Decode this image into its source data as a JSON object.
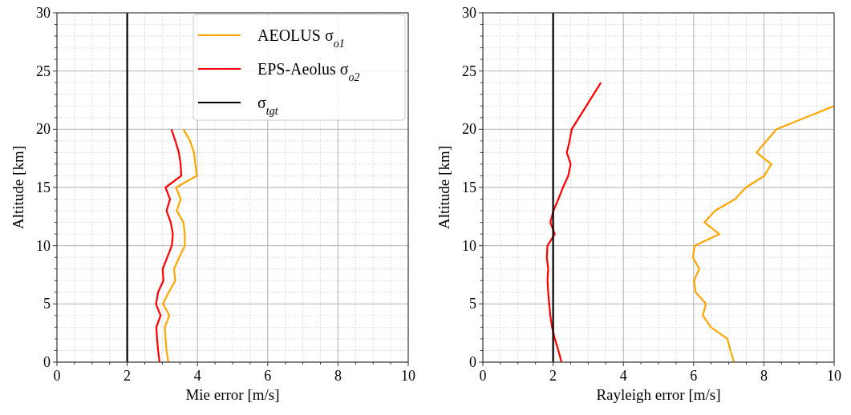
{
  "chart_data": [
    {
      "type": "line",
      "xlabel": "Mie error [m/s]",
      "ylabel": "Altitude [km]",
      "xlim": [
        0,
        10
      ],
      "ylim": [
        0,
        30
      ],
      "xticks": [
        0,
        {
          "value": 0.5,
          "label": null
        },
        {
          "value": 1,
          "label": null
        },
        {
          "value": 1.5,
          "label": null
        },
        2,
        {
          "value": 2.5,
          "label": null
        },
        {
          "value": 3,
          "label": null
        },
        {
          "value": 3.5,
          "label": null
        },
        4,
        {
          "value": 4.5,
          "label": null
        },
        {
          "value": 5,
          "label": null
        },
        {
          "value": 5.5,
          "label": null
        },
        6,
        {
          "value": 6.5,
          "label": null
        },
        {
          "value": 7,
          "label": null
        },
        {
          "value": 7.5,
          "label": null
        },
        8,
        {
          "value": 8.5,
          "label": null
        },
        {
          "value": 9,
          "label": null
        },
        {
          "value": 9.5,
          "label": null
        },
        10
      ],
      "yticks": [
        0,
        {
          "value": 1,
          "label": null
        },
        {
          "value": 2,
          "label": null
        },
        {
          "value": 3,
          "label": null
        },
        {
          "value": 4,
          "label": null
        },
        5,
        {
          "value": 6,
          "label": null
        },
        {
          "value": 7,
          "label": null
        },
        {
          "value": 8,
          "label": null
        },
        {
          "value": 9,
          "label": null
        },
        10,
        {
          "value": 11,
          "label": null
        },
        {
          "value": 12,
          "label": null
        },
        {
          "value": 13,
          "label": null
        },
        {
          "value": 14,
          "label": null
        },
        15,
        {
          "value": 16,
          "label": null
        },
        {
          "value": 17,
          "label": null
        },
        {
          "value": 18,
          "label": null
        },
        {
          "value": 19,
          "label": null
        },
        20,
        {
          "value": 21,
          "label": null
        },
        {
          "value": 22,
          "label": null
        },
        {
          "value": 23,
          "label": null
        },
        {
          "value": 24,
          "label": null
        },
        25,
        {
          "value": 26,
          "label": null
        },
        {
          "value": 27,
          "label": null
        },
        {
          "value": 28,
          "label": null
        },
        {
          "value": 29,
          "label": null
        },
        30
      ],
      "grid": true,
      "legend": "top right",
      "line_style": "solid",
      "marker": "none",
      "series": [
        {
          "name": "AEOLUS σ$_{o1}$",
          "color": "#ffa500",
          "x": [
            3.17,
            3.12,
            3.09,
            3.07,
            3.2,
            3.02,
            3.18,
            3.37,
            3.33,
            3.48,
            3.64,
            3.64,
            3.6,
            3.41,
            3.52,
            3.39,
            3.98,
            3.94,
            3.9,
            3.79,
            3.6
          ],
          "values": [
            0,
            1,
            2,
            3,
            4,
            5,
            6,
            7,
            8,
            9,
            10,
            11,
            12,
            13,
            14,
            15,
            16,
            17,
            18,
            19,
            20
          ]
        },
        {
          "name": "EPS-Aeolus σ$_{o2}$",
          "color": "#ff0000",
          "x": [
            2.92,
            2.88,
            2.85,
            2.83,
            2.95,
            2.82,
            2.88,
            3.03,
            3.01,
            3.14,
            3.27,
            3.3,
            3.24,
            3.12,
            3.22,
            3.09,
            3.54,
            3.52,
            3.47,
            3.37,
            3.26
          ],
          "values": [
            0,
            1,
            2,
            3,
            4,
            5,
            6,
            7,
            8,
            9,
            10,
            11,
            12,
            13,
            14,
            15,
            16,
            17,
            18,
            19,
            20
          ]
        },
        {
          "name": "σ$_{tgt}$",
          "color": "#000000",
          "x": [
            2,
            2
          ],
          "values": [
            0,
            30
          ]
        }
      ]
    },
    {
      "type": "line",
      "xlabel": "Rayleigh error [m/s]",
      "ylabel": "Altitude [km]",
      "xlim": [
        0,
        10
      ],
      "ylim": [
        0,
        30
      ],
      "xticks": [
        0,
        {
          "value": 0.5,
          "label": null
        },
        {
          "value": 1,
          "label": null
        },
        {
          "value": 1.5,
          "label": null
        },
        2,
        {
          "value": 2.5,
          "label": null
        },
        {
          "value": 3,
          "label": null
        },
        {
          "value": 3.5,
          "label": null
        },
        4,
        {
          "value": 4.5,
          "label": null
        },
        {
          "value": 5,
          "label": null
        },
        {
          "value": 5.5,
          "label": null
        },
        6,
        {
          "value": 6.5,
          "label": null
        },
        {
          "value": 7,
          "label": null
        },
        {
          "value": 7.5,
          "label": null
        },
        8,
        {
          "value": 8.5,
          "label": null
        },
        {
          "value": 9,
          "label": null
        },
        {
          "value": 9.5,
          "label": null
        },
        10
      ],
      "yticks": [
        0,
        {
          "value": 1,
          "label": null
        },
        {
          "value": 2,
          "label": null
        },
        {
          "value": 3,
          "label": null
        },
        {
          "value": 4,
          "label": null
        },
        5,
        {
          "value": 6,
          "label": null
        },
        {
          "value": 7,
          "label": null
        },
        {
          "value": 8,
          "label": null
        },
        {
          "value": 9,
          "label": null
        },
        10,
        {
          "value": 11,
          "label": null
        },
        {
          "value": 12,
          "label": null
        },
        {
          "value": 13,
          "label": null
        },
        {
          "value": 14,
          "label": null
        },
        15,
        {
          "value": 16,
          "label": null
        },
        {
          "value": 17,
          "label": null
        },
        {
          "value": 18,
          "label": null
        },
        {
          "value": 19,
          "label": null
        },
        20,
        {
          "value": 21,
          "label": null
        },
        {
          "value": 22,
          "label": null
        },
        {
          "value": 23,
          "label": null
        },
        {
          "value": 24,
          "label": null
        },
        25,
        {
          "value": 26,
          "label": null
        },
        {
          "value": 27,
          "label": null
        },
        {
          "value": 28,
          "label": null
        },
        {
          "value": 29,
          "label": null
        },
        30
      ],
      "grid": true,
      "line_style": "solid",
      "marker": "none",
      "series": [
        {
          "color": "#ffa500",
          "x": [
            7.15,
            7.05,
            6.96,
            6.49,
            6.26,
            6.35,
            6.06,
            6.01,
            6.16,
            5.98,
            6.03,
            6.73,
            6.31,
            6.61,
            7.18,
            7.49,
            8.01,
            8.21,
            7.79,
            8.36,
            10
          ],
          "values": [
            0,
            1,
            2,
            3,
            4,
            5,
            6,
            7,
            8,
            9,
            10,
            11,
            12,
            13,
            14,
            15,
            16,
            17,
            18,
            20,
            22
          ]
        },
        {
          "color": "#ff0000",
          "x": [
            2.24,
            2.15,
            2.05,
            1.97,
            1.92,
            1.89,
            1.86,
            1.84,
            1.86,
            1.82,
            1.84,
            2.05,
            1.92,
            2.01,
            2.15,
            2.28,
            2.43,
            2.5,
            2.39,
            2.47,
            2.53,
            3.36
          ],
          "values": [
            0,
            1,
            2,
            3,
            4,
            5,
            6,
            7,
            8,
            9,
            10,
            11,
            12,
            13,
            14,
            15,
            16,
            17,
            18,
            19,
            20,
            24
          ]
        },
        {
          "color": "#000000",
          "x": [
            2,
            2
          ],
          "values": [
            0,
            30
          ]
        }
      ]
    }
  ]
}
